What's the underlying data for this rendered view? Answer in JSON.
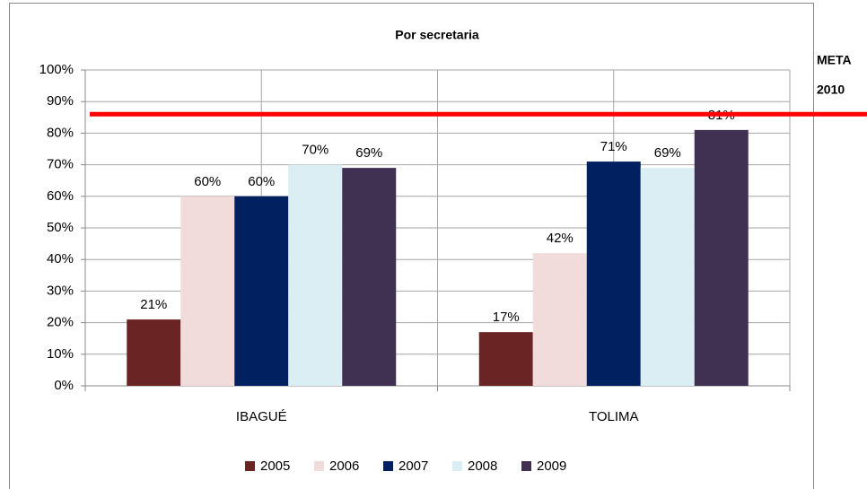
{
  "chart_data": {
    "type": "bar",
    "title": "Por secretaria",
    "categories": [
      "IBAGUÉ",
      "TOLIMA"
    ],
    "series": [
      {
        "name": "2005",
        "color": "#6b2424",
        "values": [
          21,
          17
        ],
        "value_labels": [
          "21%",
          "17%"
        ]
      },
      {
        "name": "2006",
        "color": "#f2dcdb",
        "values": [
          60,
          42
        ],
        "value_labels": [
          "60%",
          "42%"
        ]
      },
      {
        "name": "2007",
        "color": "#002060",
        "values": [
          60,
          71
        ],
        "value_labels": [
          "60%",
          "71%"
        ]
      },
      {
        "name": "2008",
        "color": "#dbeef4",
        "values": [
          70,
          69
        ],
        "value_labels": [
          "70%",
          "69%"
        ]
      },
      {
        "name": "2009",
        "color": "#403152",
        "values": [
          69,
          81
        ],
        "value_labels": [
          "69%",
          "81%"
        ]
      }
    ],
    "ylim": [
      0,
      100
    ],
    "yticks": [
      {
        "value": 0,
        "label": "0%"
      },
      {
        "value": 10,
        "label": "10%"
      },
      {
        "value": 20,
        "label": "20%"
      },
      {
        "value": 30,
        "label": "30%"
      },
      {
        "value": 40,
        "label": "40%"
      },
      {
        "value": 50,
        "label": "50%"
      },
      {
        "value": 60,
        "label": "60%"
      },
      {
        "value": 70,
        "label": "70%"
      },
      {
        "value": 80,
        "label": "80%"
      },
      {
        "value": 90,
        "label": "90%"
      },
      {
        "value": 100,
        "label": "100%"
      }
    ],
    "grid": true,
    "legend": "bottom",
    "reference_line": {
      "value": 86,
      "color": "#ff0000",
      "label": [
        "META",
        "2010"
      ]
    }
  }
}
